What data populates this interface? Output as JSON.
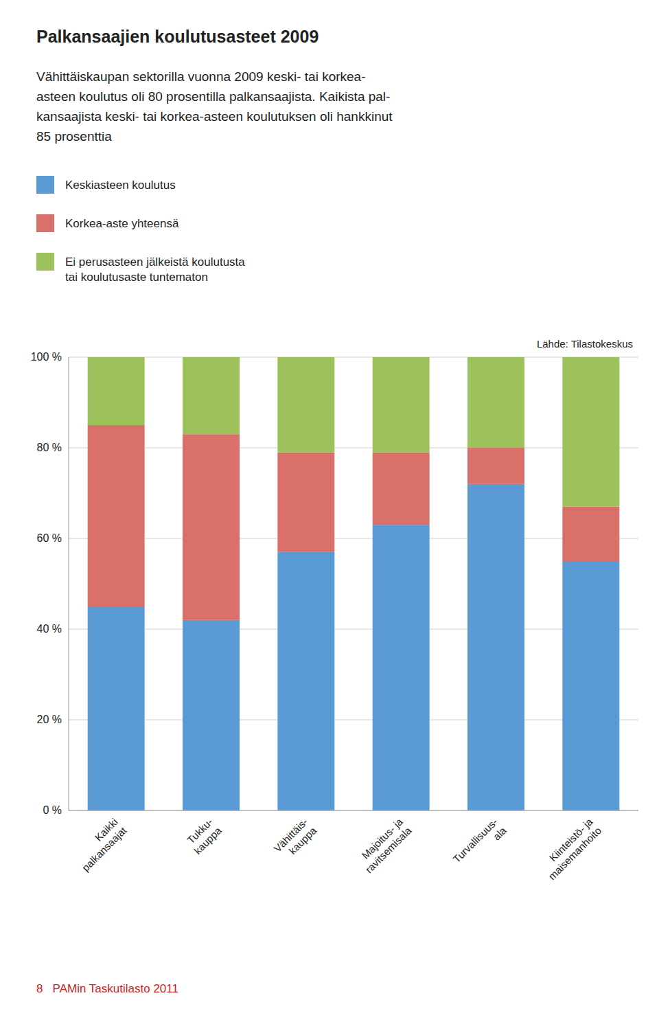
{
  "chart_data": {
    "type": "bar",
    "stacked": true,
    "title": "Palkansaajien koulutusasteet 2009",
    "subtitle": "Vähittäiskaupan sektorilla vuonna 2009 keski- tai korkea-\nasteen koulutus oli 80 prosentilla palkansaajista. Kaikista pal-\nkansaajista keski- tai korkea-asteen koulutuksen oli hankkinut\n85 prosenttia",
    "categories": [
      "Kaikki\npalkansaajat",
      "Tukku-\nkauppa",
      "Vähittäis-\nkauppa",
      "Majoitus- ja\nravitsemisala",
      "Turvallisuus-\nala",
      "Kiinteistö- ja\nmaisemanhoito"
    ],
    "series": [
      {
        "name": "Keskiasteen koulutus",
        "color": "#5b9bd5",
        "values": [
          45,
          42,
          57,
          63,
          72,
          55
        ]
      },
      {
        "name": "Korkea-aste yhteensä",
        "color": "#d9716a",
        "values": [
          40,
          41,
          22,
          16,
          8,
          12
        ]
      },
      {
        "name": "Ei perusasteen jälkeistä koulutusta\ntai koulutusaste tuntematon",
        "color": "#9dc15b",
        "values": [
          15,
          17,
          21,
          21,
          20,
          33
        ]
      }
    ],
    "ylim": [
      0,
      100
    ],
    "yticks": [
      {
        "value": 0,
        "label": "0 %"
      },
      {
        "value": 20,
        "label": "20 %"
      },
      {
        "value": 40,
        "label": "40 %"
      },
      {
        "value": 60,
        "label": "60 %"
      },
      {
        "value": 80,
        "label": "80 %"
      },
      {
        "value": 100,
        "label": "100 %"
      }
    ],
    "grid": true,
    "legend": "top",
    "annotations": [
      "Lähde: Tilastokeskus",
      "8   PAMin Taskutilasto 2011"
    ]
  }
}
